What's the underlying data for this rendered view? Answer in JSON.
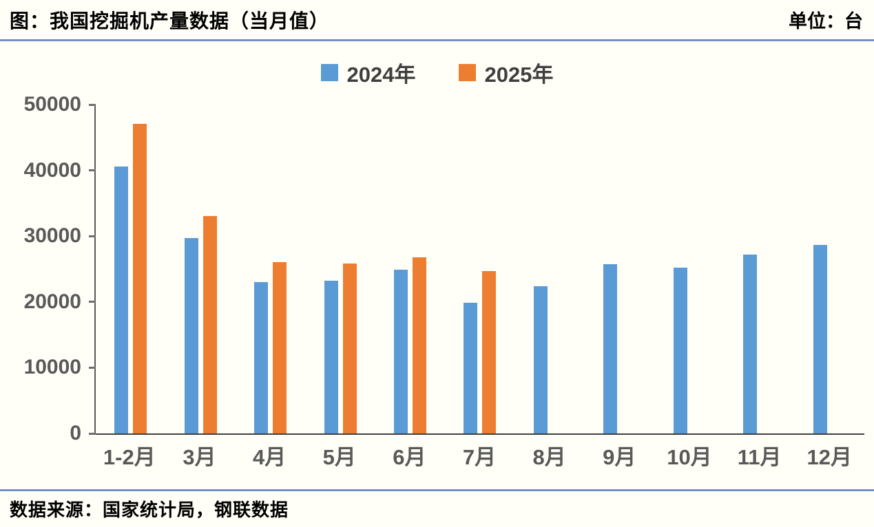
{
  "header": {
    "title": "图：我国挖掘机产量数据（当月值）",
    "unit": "单位：台"
  },
  "legend": {
    "items": [
      {
        "label": "2024年",
        "color": "#5B9BD5"
      },
      {
        "label": "2025年",
        "color": "#ED7D31"
      }
    ]
  },
  "chart_data": {
    "type": "bar",
    "title": "我国挖掘机产量数据（当月值）",
    "xlabel": "",
    "ylabel": "台",
    "categories": [
      "1-2月",
      "3月",
      "4月",
      "5月",
      "6月",
      "7月",
      "8月",
      "9月",
      "10月",
      "11月",
      "12月"
    ],
    "series": [
      {
        "name": "2024年",
        "color": "#5B9BD5",
        "values": [
          40600,
          29700,
          23000,
          23200,
          24900,
          19900,
          22400,
          25700,
          25200,
          27200,
          28700
        ]
      },
      {
        "name": "2025年",
        "color": "#ED7D31",
        "values": [
          47100,
          33100,
          26000,
          25800,
          26800,
          24700,
          null,
          null,
          null,
          null,
          null
        ]
      }
    ],
    "ylim": [
      0,
      50000
    ],
    "yticks": [
      0,
      10000,
      20000,
      30000,
      40000,
      50000
    ],
    "grid": false,
    "legend_position": "top-center"
  },
  "footer": {
    "source": "数据来源：国家统计局，钢联数据"
  },
  "colors": {
    "background": "#FFFEF7",
    "divider": "#7790C4",
    "axis": "#404040",
    "tick_text": "#595959",
    "series_2024": "#5B9BD5",
    "series_2025": "#ED7D31"
  }
}
